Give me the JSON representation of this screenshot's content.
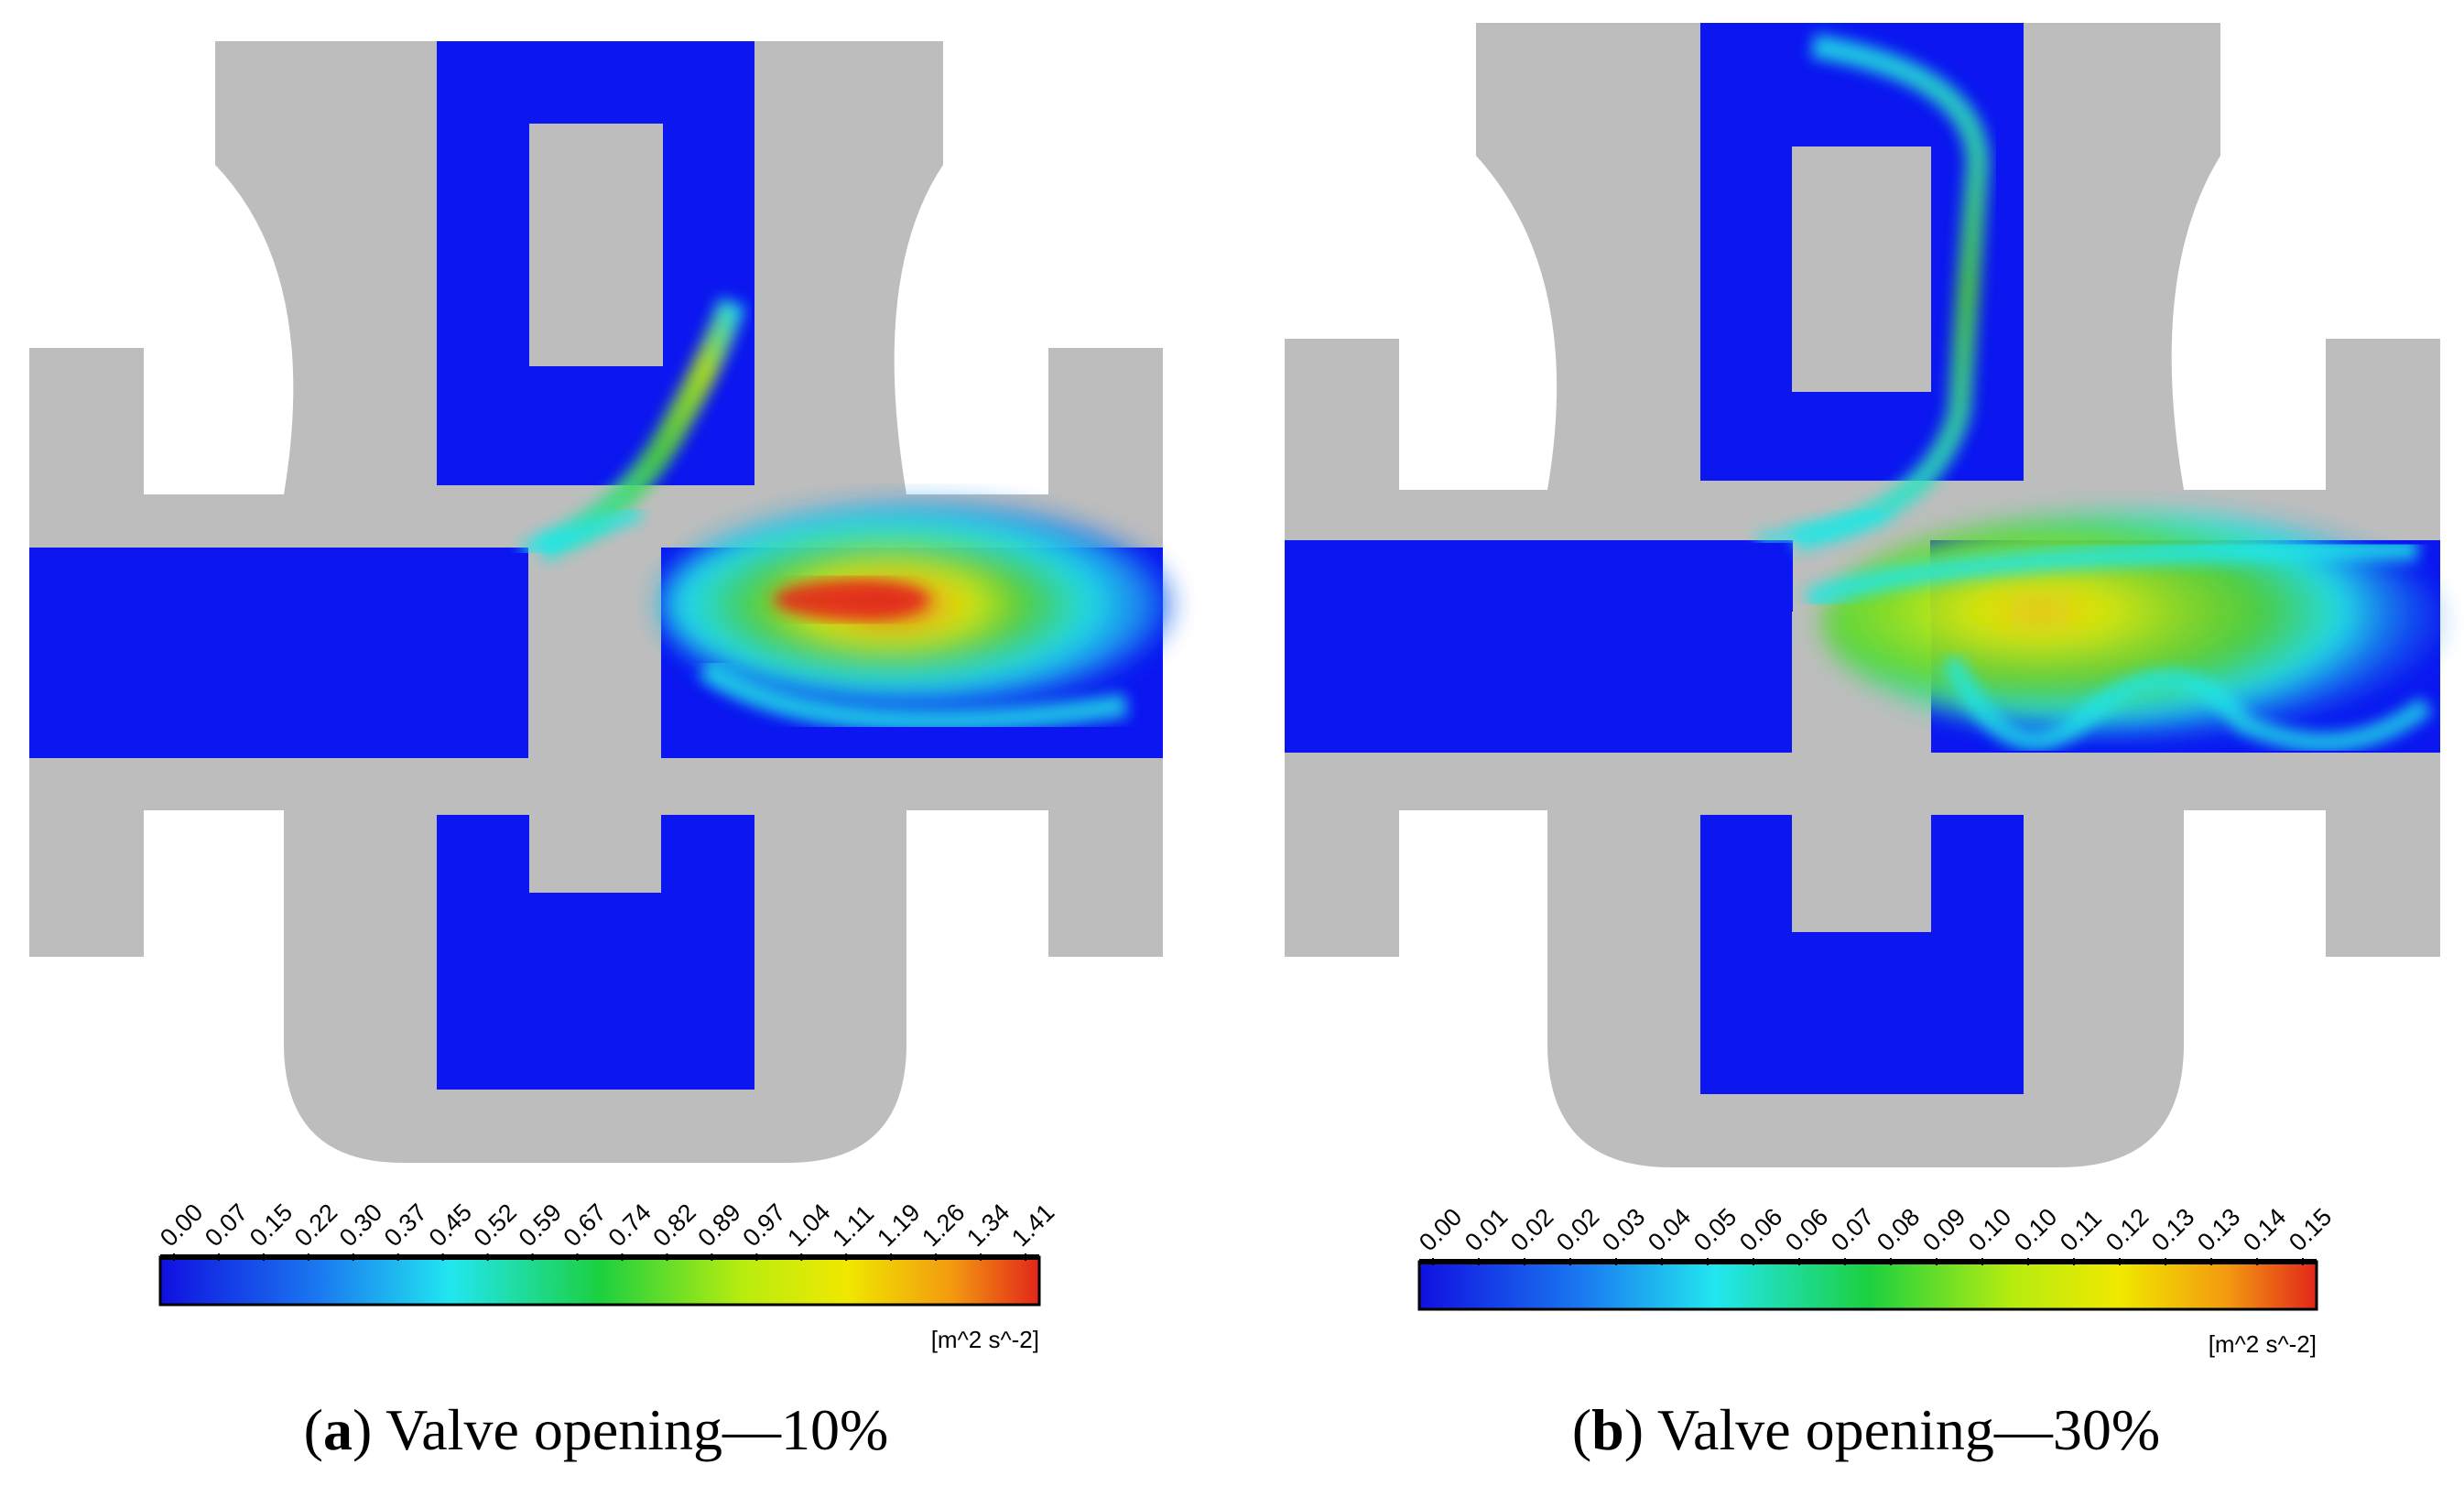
{
  "panels": [
    {
      "id": "a",
      "caption_letter": "a",
      "caption_text": "Valve opening—10%",
      "colorbar": {
        "ticks": [
          "0.00",
          "0.07",
          "0.15",
          "0.22",
          "0.30",
          "0.37",
          "0.45",
          "0.52",
          "0.59",
          "0.67",
          "0.74",
          "0.82",
          "0.89",
          "0.97",
          "1.04",
          "1.11",
          "1.19",
          "1.26",
          "1.34",
          "1.41"
        ],
        "unit": "[m^2 s^-2]"
      }
    },
    {
      "id": "b",
      "caption_letter": "b",
      "caption_text": "Valve opening—30%",
      "colorbar": {
        "ticks": [
          "0.00",
          "0.01",
          "0.02",
          "0.02",
          "0.03",
          "0.04",
          "0.05",
          "0.06",
          "0.06",
          "0.07",
          "0.08",
          "0.09",
          "0.10",
          "0.10",
          "0.11",
          "0.12",
          "0.13",
          "0.13",
          "0.14",
          "0.15"
        ],
        "unit": "[m^2 s^-2]"
      }
    }
  ],
  "colors": {
    "body": "#bdbdbd",
    "fluid_low": "#0b16f0",
    "cyan": "#22e6e6",
    "green": "#4fd63a",
    "yellow": "#e8f000",
    "orange": "#f39a10",
    "red": "#e2261a"
  }
}
